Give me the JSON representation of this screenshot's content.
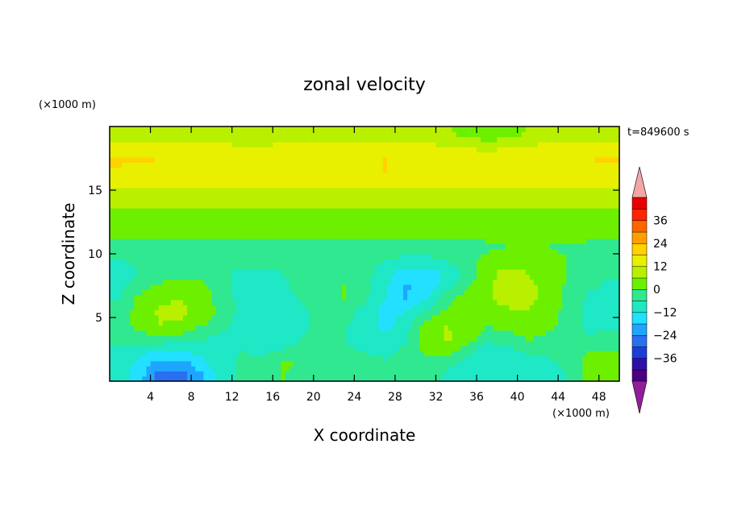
{
  "chart_data": {
    "type": "heatmap",
    "title": "zonal velocity",
    "time_label": "t=849600 s",
    "xlabel": "X coordinate",
    "ylabel": "Z coordinate",
    "x_unit": "(×1000 m)",
    "z_unit": "(×1000 m)",
    "xlim": [
      0,
      50
    ],
    "zlim": [
      0,
      20
    ],
    "x_ticks": [
      "4",
      "8",
      "12",
      "16",
      "20",
      "24",
      "28",
      "32",
      "36",
      "40",
      "44",
      "48"
    ],
    "z_ticks": [
      "5",
      "10",
      "15"
    ],
    "colorbar": {
      "ticks": [
        "36",
        "24",
        "12",
        "0",
        "−12",
        "−24",
        "−36"
      ],
      "levels": [
        -42,
        -36,
        -30,
        -24,
        -18,
        -12,
        -6,
        0,
        6,
        12,
        18,
        24,
        30,
        36,
        42
      ],
      "colors": [
        "#4b0081",
        "#2e10a8",
        "#1e3cd8",
        "#2a6ff0",
        "#1ea6ff",
        "#22e0ff",
        "#1fe8c6",
        "#30e890",
        "#6cf000",
        "#b8f000",
        "#e8f000",
        "#ffd200",
        "#ffa000",
        "#ff6400",
        "#ff2400",
        "#e80000"
      ],
      "under_color": "#8f1f9a",
      "over_color": "#f2a6a6"
    },
    "z_levels": [
      0.5,
      1.5,
      2.5,
      3.5,
      4.5,
      5.5,
      6.5,
      7.5,
      8.5,
      9.5,
      10.5,
      11.5,
      12.5,
      13.5,
      14.5,
      15.5,
      16.5,
      17.5,
      18.5,
      19.5
    ],
    "x_points": [
      1,
      3,
      5,
      7,
      9,
      11,
      13,
      15,
      17,
      19,
      21,
      23,
      25,
      27,
      29,
      31,
      33,
      35,
      37,
      39,
      41,
      43,
      45,
      47,
      49
    ],
    "u": [
      [
        -9,
        -16,
        -27,
        -27,
        -19,
        -9,
        -4,
        -3,
        0,
        -2,
        -3,
        -4,
        -2,
        -3,
        -1,
        -3,
        -7,
        -10,
        -8,
        -12,
        -9,
        -8,
        -6,
        3,
        5
      ],
      [
        -8,
        -14,
        -20,
        -21,
        -14,
        -8,
        -5,
        -4,
        1,
        -1,
        -2,
        -4,
        -3,
        -5,
        -3,
        -2,
        -4,
        -8,
        -10,
        -10,
        -8,
        -7,
        -5,
        2,
        3
      ],
      [
        -7,
        -10,
        -11,
        -11,
        -9,
        -7,
        -6,
        -8,
        -6,
        -3,
        -2,
        -5,
        -7,
        -9,
        -5,
        2,
        4,
        -2,
        -10,
        -7,
        -5,
        -4,
        -3,
        0,
        0
      ],
      [
        -4,
        -2,
        -1,
        -2,
        -5,
        -7,
        -8,
        -11,
        -11,
        -6,
        -3,
        -6,
        -9,
        -11,
        -7,
        3,
        7,
        4,
        -4,
        -2,
        1,
        -1,
        -3,
        -6,
        -4
      ],
      [
        -3,
        3,
        6,
        5,
        1,
        -4,
        -9,
        -12,
        -12,
        -8,
        -2,
        -5,
        -9,
        -14,
        -9,
        2,
        6,
        5,
        1,
        2,
        4,
        2,
        -3,
        -8,
        -7
      ],
      [
        -4,
        3,
        7,
        7,
        4,
        -2,
        -8,
        -11,
        -11,
        -8,
        -1,
        -3,
        -8,
        -14,
        -12,
        -6,
        1,
        4,
        3,
        5,
        6,
        3,
        -2,
        -8,
        -8
      ],
      [
        -6,
        2,
        5,
        6,
        4,
        -3,
        -8,
        -10,
        -9,
        -5,
        0,
        0,
        -5,
        -12,
        -18,
        -12,
        -3,
        3,
        5,
        8,
        8,
        4,
        -2,
        -7,
        -8
      ],
      [
        -8,
        -2,
        1,
        3,
        2,
        -4,
        -8,
        -9,
        -7,
        -4,
        -1,
        0,
        -3,
        -11,
        -19,
        -16,
        -9,
        -1,
        5,
        9,
        8,
        4,
        -1,
        -5,
        -7
      ],
      [
        -9,
        -6,
        -3,
        -2,
        -3,
        -5,
        -7,
        -7,
        -6,
        -5,
        -4,
        -2,
        -4,
        -9,
        -15,
        -15,
        -11,
        -4,
        4,
        8,
        6,
        3,
        0,
        -3,
        -5
      ],
      [
        -6,
        -5,
        -4,
        -4,
        -4,
        -4,
        -5,
        -5,
        -5,
        -4,
        -4,
        -3,
        -4,
        -6,
        -8,
        -8,
        -6,
        -2,
        2,
        4,
        3,
        2,
        0,
        -1,
        -3
      ],
      [
        -3,
        -3,
        -3,
        -2,
        -2,
        -2,
        -2,
        -3,
        -3,
        -2,
        -2,
        -2,
        -2,
        -3,
        -3,
        -3,
        -3,
        -2,
        -1,
        0,
        0,
        0,
        -1,
        -1,
        -2
      ],
      [
        1,
        1,
        1,
        2,
        1,
        1,
        1,
        1,
        1,
        1,
        1,
        1,
        1,
        1,
        1,
        1,
        1,
        1,
        1,
        1,
        1,
        1,
        1,
        1,
        1
      ],
      [
        3,
        3,
        3,
        3,
        3,
        3,
        3,
        3,
        3,
        3,
        3,
        3,
        3,
        3,
        3,
        3,
        3,
        3,
        3,
        3,
        3,
        3,
        3,
        3,
        3
      ],
      [
        6,
        6,
        6,
        6,
        6,
        6,
        6,
        6,
        6,
        6,
        6,
        6,
        6,
        6,
        6,
        6,
        6,
        6,
        6,
        6,
        6,
        6,
        6,
        6,
        6
      ],
      [
        9,
        9,
        9,
        9,
        8,
        8,
        8,
        9,
        9,
        9,
        9,
        9,
        8,
        7,
        7,
        7,
        7,
        8,
        8,
        8,
        8,
        9,
        9,
        9,
        9
      ],
      [
        13,
        13,
        13,
        13,
        13,
        13,
        13,
        13,
        13,
        13,
        13,
        13,
        13,
        13,
        13,
        13,
        13,
        13,
        13,
        13,
        13,
        13,
        13,
        13,
        13
      ],
      [
        16,
        16,
        16,
        16,
        16,
        16,
        16,
        16,
        16,
        16,
        16,
        16,
        17,
        18,
        17,
        16,
        16,
        16,
        16,
        16,
        16,
        16,
        16,
        16,
        16
      ],
      [
        20,
        19,
        18,
        18,
        18,
        18,
        18,
        18,
        18,
        18,
        18,
        18,
        18,
        18,
        18,
        18,
        18,
        18,
        18,
        18,
        18,
        18,
        18,
        18,
        19
      ],
      [
        13,
        13,
        13,
        13,
        13,
        13,
        12,
        12,
        13,
        13,
        13,
        13,
        13,
        14,
        14,
        13,
        12,
        10,
        9,
        10,
        12,
        13,
        13,
        13,
        13
      ],
      [
        8,
        8,
        8,
        8,
        8,
        8,
        7,
        7,
        7,
        8,
        8,
        9,
        9,
        9,
        9,
        8,
        7,
        4,
        2,
        3,
        6,
        8,
        8,
        8,
        8
      ]
    ]
  }
}
